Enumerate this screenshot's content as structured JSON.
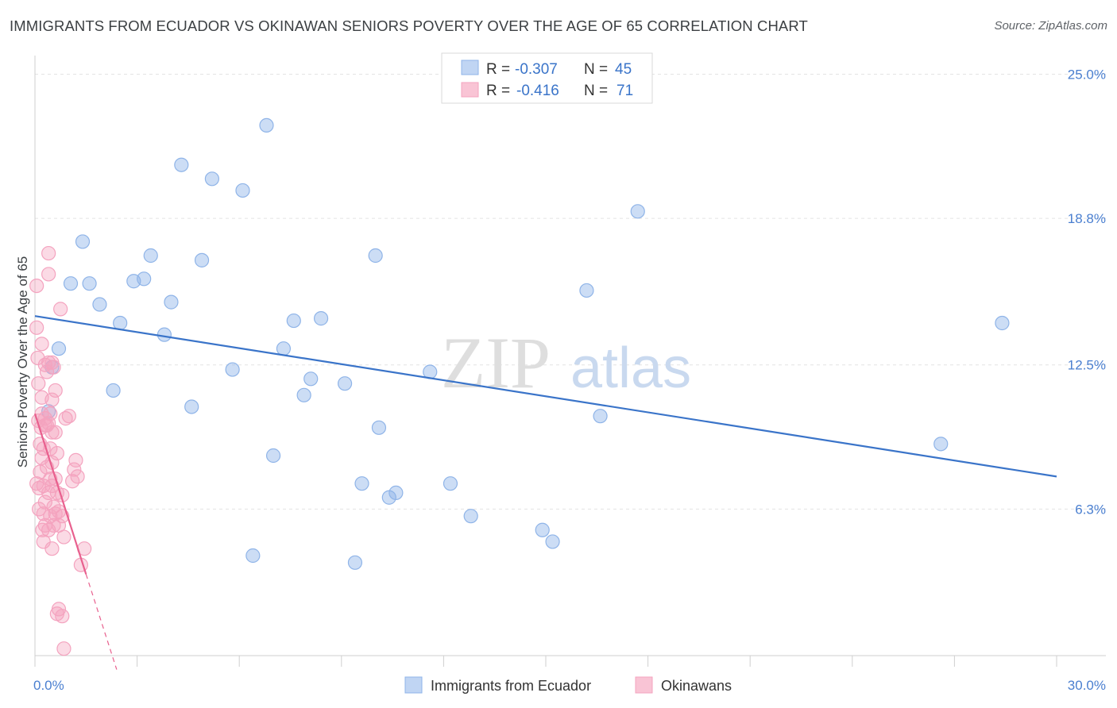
{
  "title": "IMMIGRANTS FROM ECUADOR VS OKINAWAN SENIORS POVERTY OVER THE AGE OF 65 CORRELATION CHART",
  "source": "Source: ZipAtlas.com",
  "watermark": {
    "zip": "ZIP",
    "atlas": "atlas"
  },
  "legend_top": [
    {
      "r_label": "R =",
      "r_value": "-0.307",
      "n_label": "N =",
      "n_value": "45"
    },
    {
      "r_label": "R =",
      "r_value": "-0.416",
      "n_label": "N =",
      "n_value": "71"
    }
  ],
  "chart_data": {
    "type": "scatter",
    "title": "IMMIGRANTS FROM ECUADOR VS OKINAWAN SENIORS POVERTY OVER THE AGE OF 65 CORRELATION CHART",
    "xlabel": "",
    "ylabel": "Seniors Poverty Over the Age of 65",
    "xlim": [
      0,
      30
    ],
    "ylim": [
      0,
      25.8
    ],
    "x_tick_labels": [
      "0.0%",
      "30.0%"
    ],
    "y_ticks": [
      6.3,
      12.5,
      18.8,
      25.0
    ],
    "y_tick_labels": [
      "6.3%",
      "12.5%",
      "18.8%",
      "25.0%"
    ],
    "grid": true,
    "legend_position": "bottom",
    "series": [
      {
        "name": "Immigrants from Ecuador",
        "color": "#8fb4e8",
        "line_color": "#3a74c9",
        "trend": {
          "x": [
            0.0,
            30.0
          ],
          "y": [
            14.6,
            7.7
          ]
        },
        "points": [
          [
            0.4,
            10.5
          ],
          [
            0.5,
            12.4
          ],
          [
            0.7,
            13.2
          ],
          [
            1.4,
            17.8
          ],
          [
            1.05,
            16.0
          ],
          [
            1.6,
            16.0
          ],
          [
            1.9,
            15.1
          ],
          [
            2.3,
            11.4
          ],
          [
            2.5,
            14.3
          ],
          [
            2.9,
            16.1
          ],
          [
            3.2,
            16.2
          ],
          [
            3.4,
            17.2
          ],
          [
            3.8,
            13.8
          ],
          [
            4.0,
            15.2
          ],
          [
            4.3,
            21.1
          ],
          [
            4.6,
            10.7
          ],
          [
            4.9,
            17.0
          ],
          [
            5.2,
            20.5
          ],
          [
            5.8,
            12.3
          ],
          [
            6.1,
            20.0
          ],
          [
            6.4,
            4.3
          ],
          [
            6.8,
            22.8
          ],
          [
            7.0,
            8.6
          ],
          [
            7.3,
            13.2
          ],
          [
            7.6,
            14.4
          ],
          [
            7.9,
            11.2
          ],
          [
            8.1,
            11.9
          ],
          [
            8.4,
            14.5
          ],
          [
            9.1,
            11.7
          ],
          [
            9.4,
            4.0
          ],
          [
            9.6,
            7.4
          ],
          [
            10.0,
            17.2
          ],
          [
            10.1,
            9.8
          ],
          [
            10.4,
            6.8
          ],
          [
            10.6,
            7.0
          ],
          [
            11.6,
            12.2
          ],
          [
            12.2,
            7.4
          ],
          [
            12.8,
            6.0
          ],
          [
            14.9,
            5.4
          ],
          [
            15.2,
            4.9
          ],
          [
            16.2,
            15.7
          ],
          [
            16.6,
            10.3
          ],
          [
            17.7,
            19.1
          ],
          [
            26.6,
            9.1
          ],
          [
            28.4,
            14.3
          ]
        ]
      },
      {
        "name": "Okinawans",
        "color": "#f4a3bf",
        "line_color": "#e8608e",
        "trend": {
          "x": [
            0.0,
            1.5
          ],
          "y": [
            10.4,
            3.5
          ]
        },
        "trend_dashed": {
          "x": [
            1.5,
            2.4
          ],
          "y": [
            3.5,
            -0.6
          ]
        },
        "points": [
          [
            0.05,
            15.9
          ],
          [
            0.05,
            14.1
          ],
          [
            0.08,
            12.8
          ],
          [
            0.1,
            11.7
          ],
          [
            0.1,
            10.1
          ],
          [
            0.15,
            9.1
          ],
          [
            0.15,
            7.9
          ],
          [
            0.12,
            7.2
          ],
          [
            0.2,
            13.4
          ],
          [
            0.2,
            10.4
          ],
          [
            0.18,
            9.8
          ],
          [
            0.2,
            8.5
          ],
          [
            0.25,
            7.3
          ],
          [
            0.25,
            6.1
          ],
          [
            0.22,
            5.4
          ],
          [
            0.25,
            4.9
          ],
          [
            0.2,
            11.1
          ],
          [
            0.3,
            12.5
          ],
          [
            0.35,
            9.9
          ],
          [
            0.35,
            8.1
          ],
          [
            0.3,
            6.6
          ],
          [
            0.3,
            5.6
          ],
          [
            0.4,
            17.3
          ],
          [
            0.4,
            16.4
          ],
          [
            0.4,
            12.6
          ],
          [
            0.4,
            10.0
          ],
          [
            0.45,
            8.9
          ],
          [
            0.45,
            7.6
          ],
          [
            0.4,
            7.0
          ],
          [
            0.45,
            6.0
          ],
          [
            0.4,
            5.4
          ],
          [
            0.5,
            11.0
          ],
          [
            0.5,
            9.6
          ],
          [
            0.5,
            8.3
          ],
          [
            0.5,
            7.3
          ],
          [
            0.55,
            6.4
          ],
          [
            0.55,
            5.6
          ],
          [
            0.5,
            4.6
          ],
          [
            0.6,
            11.4
          ],
          [
            0.6,
            9.6
          ],
          [
            0.65,
            8.7
          ],
          [
            0.6,
            7.6
          ],
          [
            0.65,
            7.0
          ],
          [
            0.6,
            6.1
          ],
          [
            0.7,
            5.6
          ],
          [
            0.5,
            12.6
          ],
          [
            0.3,
            9.9
          ],
          [
            0.75,
            14.9
          ],
          [
            0.8,
            6.9
          ],
          [
            0.8,
            6.0
          ],
          [
            0.85,
            5.1
          ],
          [
            0.9,
            10.2
          ],
          [
            1.0,
            10.3
          ],
          [
            1.1,
            7.5
          ],
          [
            1.15,
            8.0
          ],
          [
            1.2,
            8.4
          ],
          [
            1.25,
            7.7
          ],
          [
            1.35,
            3.9
          ],
          [
            1.45,
            4.6
          ],
          [
            0.65,
            1.8
          ],
          [
            0.7,
            2.0
          ],
          [
            0.8,
            1.7
          ],
          [
            0.85,
            0.3
          ],
          [
            0.05,
            7.4
          ],
          [
            0.12,
            6.3
          ],
          [
            0.55,
            12.4
          ],
          [
            0.3,
            10.2
          ],
          [
            0.35,
            12.2
          ],
          [
            0.45,
            10.4
          ],
          [
            0.7,
            6.2
          ],
          [
            0.25,
            8.9
          ]
        ]
      }
    ]
  }
}
